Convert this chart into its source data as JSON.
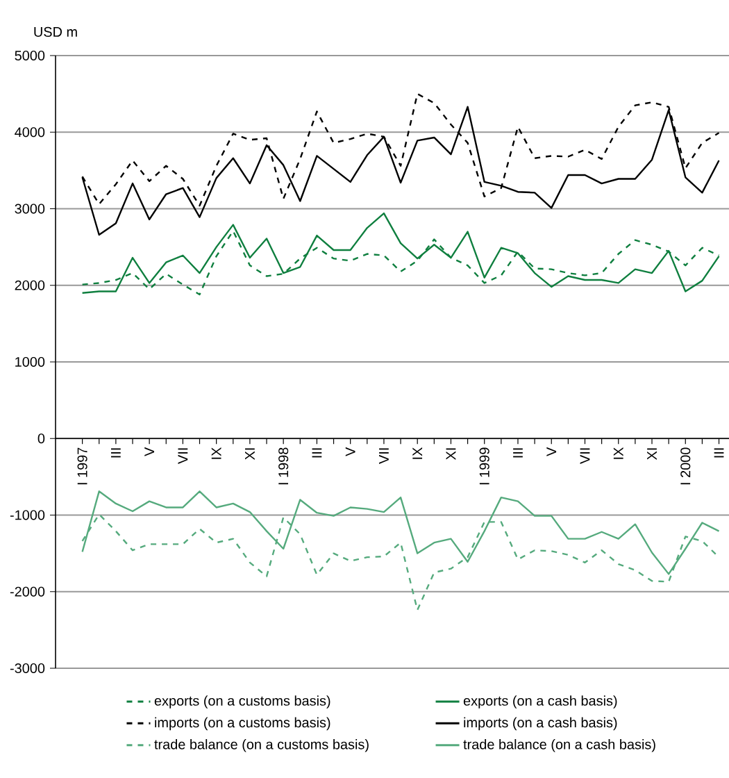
{
  "chart_data": {
    "type": "line",
    "ylabel": "USD m",
    "categories": [
      "I 1997",
      null,
      "III",
      null,
      "V",
      null,
      "VII",
      null,
      "IX",
      null,
      "XI",
      null,
      "I 1998",
      null,
      "III",
      null,
      "V",
      null,
      "VII",
      null,
      "IX",
      null,
      "XI",
      null,
      "I 1999",
      null,
      "III",
      null,
      "V",
      null,
      "VII",
      null,
      "IX",
      null,
      "XI",
      null,
      "I 2000",
      null,
      "III"
    ],
    "series": [
      {
        "name": "exports (on a customs basis)",
        "color": "#0f7f3f",
        "line_style": "dashed",
        "values": [
          2010,
          2030,
          2070,
          2160,
          1950,
          2150,
          2010,
          1880,
          2380,
          2710,
          2260,
          2120,
          2150,
          2350,
          2490,
          2350,
          2320,
          2410,
          2390,
          2180,
          2320,
          2600,
          2360,
          2260,
          2030,
          2130,
          2440,
          2220,
          2210,
          2160,
          2130,
          2160,
          2410,
          2590,
          2530,
          2440,
          2260,
          2490,
          2390
        ]
      },
      {
        "name": "exports (on a cash basis)",
        "color": "#0f7f3f",
        "line_style": "solid",
        "values": [
          1900,
          1920,
          1920,
          2360,
          2030,
          2300,
          2390,
          2160,
          2500,
          2790,
          2360,
          2610,
          2160,
          2240,
          2650,
          2460,
          2460,
          2750,
          2940,
          2550,
          2350,
          2530,
          2360,
          2700,
          2100,
          2490,
          2420,
          2160,
          1980,
          2120,
          2070,
          2070,
          2030,
          2210,
          2160,
          2450,
          1920,
          2060,
          2380
        ]
      },
      {
        "name": "imports (on a customs basis)",
        "color": "#000000",
        "line_style": "dashed",
        "values": [
          3420,
          3060,
          3320,
          3630,
          3360,
          3560,
          3390,
          3040,
          3560,
          3980,
          3900,
          3920,
          3130,
          3650,
          4270,
          3860,
          3910,
          3980,
          3940,
          3560,
          4500,
          4380,
          4100,
          3860,
          3160,
          3270,
          4070,
          3660,
          3690,
          3680,
          3770,
          3650,
          4070,
          4350,
          4390,
          4330,
          3530,
          3860,
          3990
        ]
      },
      {
        "name": "imports (on a cash basis)",
        "color": "#000000",
        "line_style": "solid",
        "values": [
          3410,
          2660,
          2810,
          3330,
          2860,
          3190,
          3270,
          2890,
          3400,
          3660,
          3330,
          3830,
          3570,
          3100,
          3690,
          3520,
          3350,
          3700,
          3940,
          3340,
          3890,
          3930,
          3710,
          4330,
          3350,
          3300,
          3220,
          3210,
          3010,
          3440,
          3440,
          3330,
          3390,
          3390,
          3640,
          4290,
          3410,
          3210,
          3630
        ]
      },
      {
        "name": "trade balance (on a customs basis)",
        "color": "#55aa7d",
        "line_style": "dashed",
        "values": [
          -1340,
          -990,
          -1210,
          -1460,
          -1380,
          -1380,
          -1380,
          -1180,
          -1360,
          -1310,
          -1620,
          -1800,
          -1030,
          -1250,
          -1780,
          -1500,
          -1600,
          -1550,
          -1540,
          -1360,
          -2240,
          -1750,
          -1700,
          -1550,
          -1090,
          -1090,
          -1580,
          -1460,
          -1470,
          -1520,
          -1620,
          -1460,
          -1640,
          -1720,
          -1860,
          -1870,
          -1280,
          -1340,
          -1550
        ]
      },
      {
        "name": "trade balance (on a cash basis)",
        "color": "#55aa7d",
        "line_style": "solid",
        "values": [
          -1480,
          -690,
          -850,
          -950,
          -820,
          -900,
          -900,
          -690,
          -900,
          -850,
          -960,
          -1210,
          -1440,
          -800,
          -970,
          -1010,
          -900,
          -920,
          -960,
          -770,
          -1500,
          -1360,
          -1310,
          -1610,
          -1210,
          -770,
          -820,
          -1010,
          -1010,
          -1310,
          -1310,
          -1220,
          -1310,
          -1120,
          -1490,
          -1770,
          -1440,
          -1100,
          -1210
        ]
      }
    ],
    "ylim": [
      -3000,
      5000
    ],
    "yticks": [
      -3000,
      -2000,
      -1000,
      0,
      1000,
      2000,
      3000,
      4000,
      5000
    ],
    "grid": "y",
    "legend": "bottom"
  }
}
